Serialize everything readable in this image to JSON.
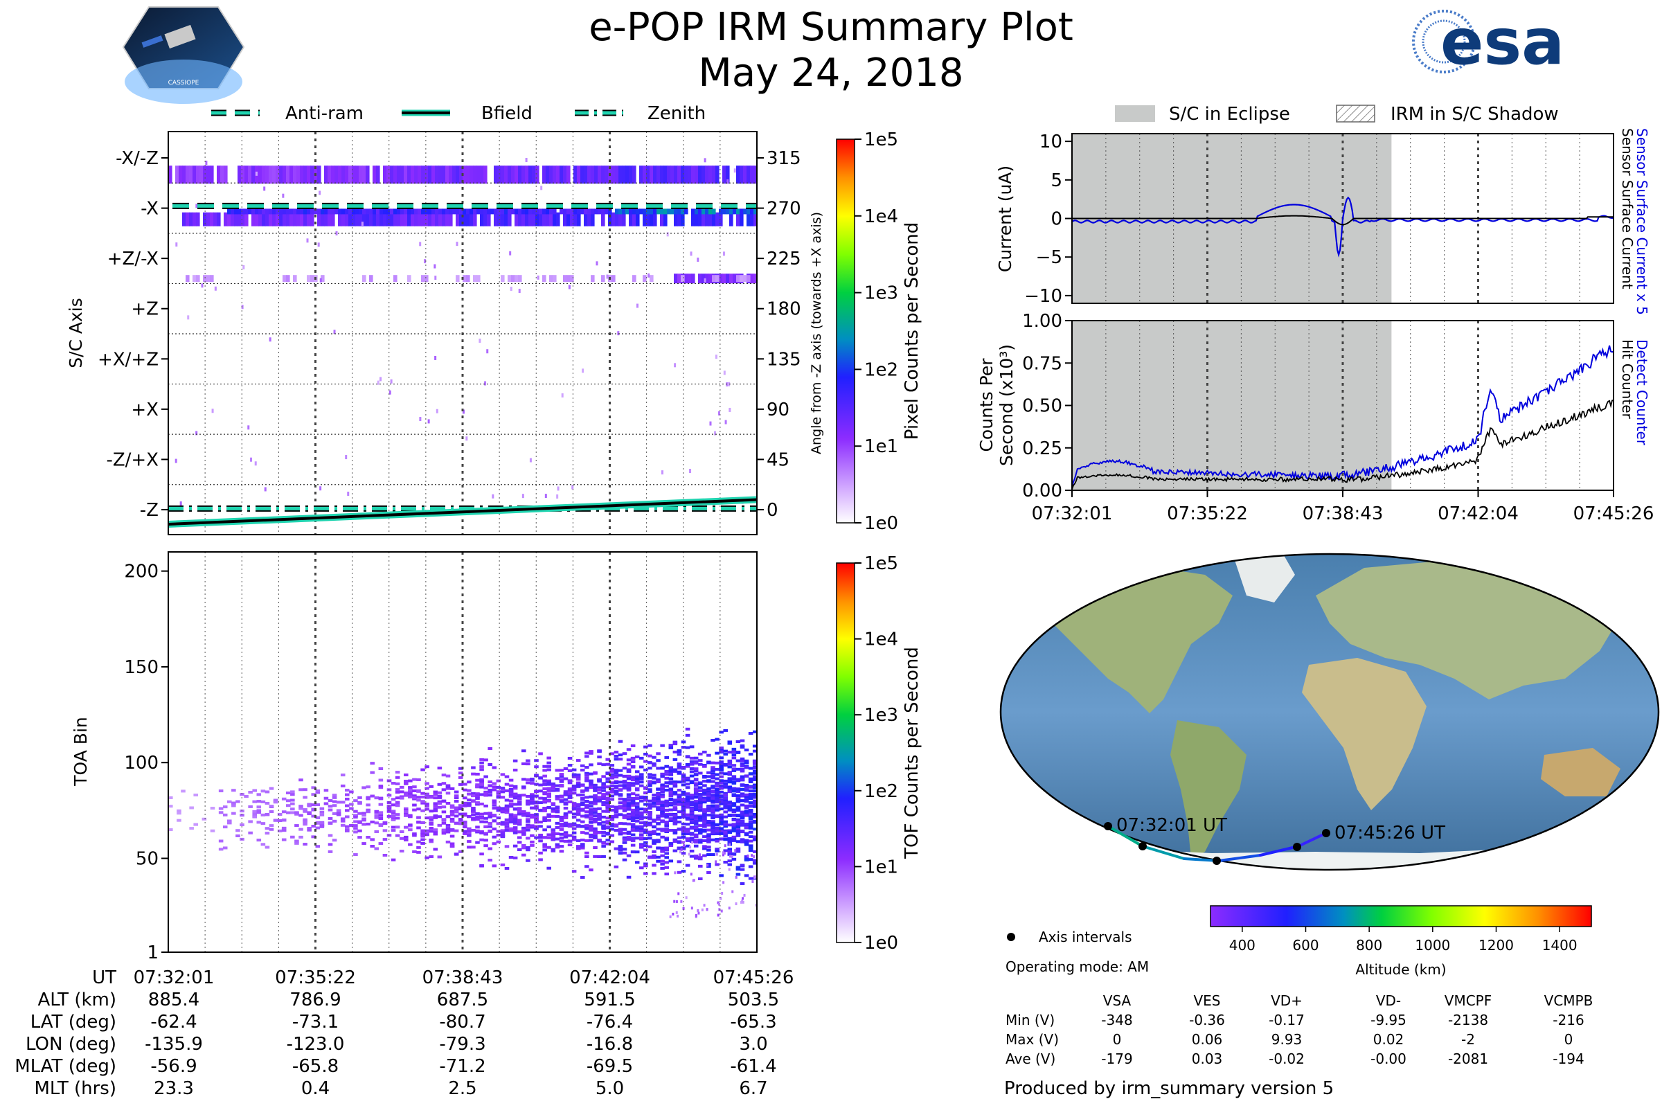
{
  "header": {
    "title": "e-POP IRM Summary Plot",
    "subtitle": "May 24, 2018",
    "esa_logo_text": "esa",
    "mission_logo_text": "CASSIOPE"
  },
  "colors": {
    "bfield": "#000000",
    "bfield_glow": "#20d4b0",
    "eclipse": "#c8cac9",
    "blue": "#0000dd",
    "grid": "#444444"
  },
  "time_ticks": [
    "07:32:01",
    "07:35:22",
    "07:38:43",
    "07:42:04",
    "07:45:26"
  ],
  "chart_data": [
    {
      "id": "sc_axis",
      "type": "heatmap",
      "title": "",
      "ylabel": "S/C Axis",
      "y2label": "Angle from -Z axis (towards +X axis)",
      "y_ticks_left": [
        "-X/-Z",
        "-X",
        "+Z/-X",
        "+Z",
        "+X/+Z",
        "+X",
        "-Z/+X",
        "-Z"
      ],
      "y_ticks_right": [
        "315",
        "270",
        "225",
        "180",
        "135",
        "90",
        "45",
        "0"
      ],
      "legend": [
        "Anti-ram",
        "Bfield",
        "Zenith"
      ],
      "colorbar_label": "Pixel Counts per Second",
      "colorbar_ticks": [
        "1e5",
        "1e4",
        "1e3",
        "1e2",
        "1e1",
        "1e0"
      ],
      "bfield_angle_deg": [
        -13,
        9
      ],
      "antiram_angle_deg": 272,
      "zenith_angle_deg": 1
    },
    {
      "id": "toa",
      "type": "heatmap",
      "ylabel": "TOA Bin",
      "y_ticks": [
        "200",
        "150",
        "100",
        "50",
        "1"
      ],
      "ylim": [
        1,
        210
      ],
      "colorbar_label": "TOF Counts per Second",
      "colorbar_ticks": [
        "1e5",
        "1e4",
        "1e3",
        "1e2",
        "1e1",
        "1e0"
      ]
    },
    {
      "id": "current",
      "type": "line",
      "ylabel": "Current (uA)",
      "ylim": [
        -11,
        11
      ],
      "y_ticks": [
        "10",
        "5",
        "0",
        "−5",
        "−10"
      ],
      "series_labels": [
        "Sensor Surface Current x 5",
        "Sensor Surface Current"
      ],
      "legend": [
        "S/C in Eclipse",
        "IRM in S/C Shadow"
      ],
      "eclipse_end_fraction": 0.59
    },
    {
      "id": "counts",
      "type": "line",
      "ylabel_lines": [
        "Counts Per",
        "Second (x10³)"
      ],
      "ylim": [
        0,
        1.0
      ],
      "y_ticks": [
        "1.00",
        "0.75",
        "0.50",
        "0.25",
        "0.00"
      ],
      "series_labels": [
        "Detect Counter",
        "Hit Counter"
      ],
      "eclipse_end_fraction": 0.59
    },
    {
      "id": "map",
      "type": "map",
      "start_label": "07:32:01 UT",
      "end_label": "07:45:26 UT",
      "legend_dot": "Axis intervals",
      "mode": "Operating mode: AM",
      "altitude_label": "Altitude (km)",
      "altitude_ticks": [
        "400",
        "600",
        "800",
        "1000",
        "1200",
        "1400"
      ],
      "altitude_range": [
        300,
        1500
      ]
    }
  ],
  "ephemeris": {
    "labels": [
      "UT",
      "ALT (km)",
      "LAT (deg)",
      "LON (deg)",
      "MLAT (deg)",
      "MLT (hrs)"
    ],
    "columns": [
      [
        "07:32:01",
        "885.4",
        "-62.4",
        "-135.9",
        "-56.9",
        "23.3"
      ],
      [
        "07:35:22",
        "786.9",
        "-73.1",
        "-123.0",
        "-65.8",
        "0.4"
      ],
      [
        "07:38:43",
        "687.5",
        "-80.7",
        "-79.3",
        "-71.2",
        "2.5"
      ],
      [
        "07:42:04",
        "591.5",
        "-76.4",
        "-16.8",
        "-69.5",
        "5.0"
      ],
      [
        "07:45:26",
        "503.5",
        "-65.3",
        "3.0",
        "-61.4",
        "6.7"
      ]
    ]
  },
  "voltages": {
    "headers": [
      "VSA",
      "VES",
      "VD+",
      "VD-",
      "VMCPF",
      "VCMPB"
    ],
    "rows": [
      {
        "label": "Min (V)",
        "values": [
          "-348",
          "-0.36",
          "-0.17",
          "-9.95",
          "-2138",
          "-216"
        ]
      },
      {
        "label": "Max (V)",
        "values": [
          "0",
          "0.06",
          "9.93",
          "0.02",
          "-2",
          "0"
        ]
      },
      {
        "label": "Ave (V)",
        "values": [
          "-179",
          "0.03",
          "-0.02",
          "-0.00",
          "-2081",
          "-194"
        ]
      }
    ]
  },
  "footer": "Produced by irm_summary version 5"
}
